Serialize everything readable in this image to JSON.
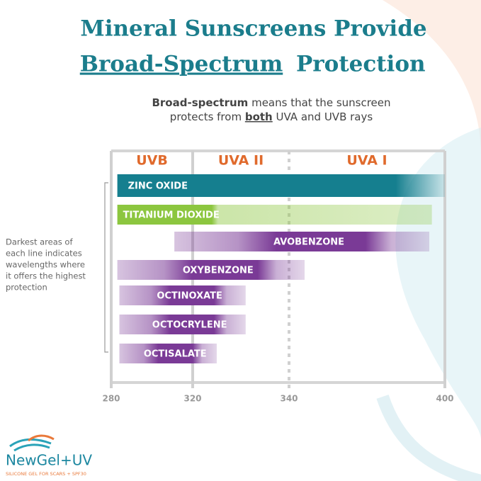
{
  "chart_data": {
    "type": "range-bar",
    "title_lines": [
      "Mineral Sunscreens Provide",
      "Broad-Spectrum",
      "Protection"
    ],
    "subtitle_parts": [
      "Broad-spectrum",
      "means that the sunscreen",
      "protects from",
      "both",
      "UVA and UVB rays"
    ],
    "annotation_lines": [
      "Darkest areas of",
      "each line indicates",
      "wavelengths where",
      "it offers the highest",
      "protection"
    ],
    "xlim": [
      280,
      400
    ],
    "xticks": [
      280,
      320,
      340,
      400
    ],
    "regions": [
      {
        "label": "UVB",
        "range": [
          280,
          320
        ]
      },
      {
        "label": "UVA II",
        "range": [
          320,
          340
        ]
      },
      {
        "label": "UVA I",
        "range": [
          340,
          400
        ]
      }
    ],
    "series": [
      {
        "name": "ZINC OXIDE",
        "color": "#157f8f",
        "values": [
          283,
          400
        ]
      },
      {
        "name": "TITANIUM DIOXIDE",
        "color": "#8cc63f",
        "values": [
          283,
          395
        ]
      },
      {
        "name": "AVOBENZONE",
        "color": "#7a3a96",
        "values": [
          311,
          394
        ]
      },
      {
        "name": "OXYBENZONE",
        "color": "#7a3a96",
        "values": [
          283,
          346
        ]
      },
      {
        "name": "OCTINOXATE",
        "color": "#7a3a96",
        "values": [
          284,
          331
        ]
      },
      {
        "name": "OCTOCRYLENE",
        "color": "#7a3a96",
        "values": [
          284,
          331
        ]
      },
      {
        "name": "OCTISALATE",
        "color": "#7a3a96",
        "values": [
          284,
          325
        ]
      }
    ],
    "logo": {
      "brand": "NewGel+UV",
      "tagline": "SILICONE GEL FOR SCARS + SPF30"
    }
  }
}
